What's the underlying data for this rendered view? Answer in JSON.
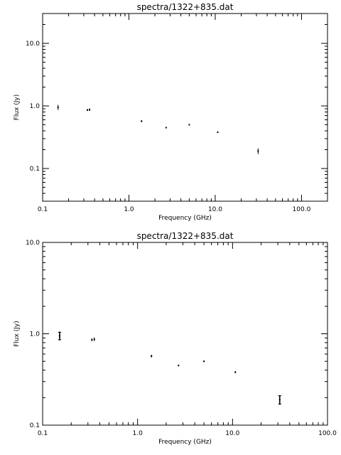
{
  "chart_data": [
    {
      "type": "scatter",
      "title": "spectra/1322+835.dat",
      "xlabel": "Frequency (GHz)",
      "ylabel": "Flux (Jy)",
      "xscale": "log",
      "yscale": "log",
      "xlim": [
        0.1,
        200
      ],
      "ylim": [
        0.03,
        30
      ],
      "xticks": [
        0.1,
        1.0,
        10.0,
        100.0
      ],
      "xtick_labels": [
        "0.1",
        "1.0",
        "10.0",
        "100.0"
      ],
      "yticks": [
        0.1,
        1.0,
        10.0
      ],
      "ytick_labels": [
        "0.1",
        "1.0",
        "10.0"
      ],
      "grid": false,
      "points": [
        {
          "x": 0.151,
          "y": 0.95,
          "err": [
            0.86,
            1.04
          ]
        },
        {
          "x": 0.33,
          "y": 0.86,
          "err": [
            0.83,
            0.89
          ]
        },
        {
          "x": 0.35,
          "y": 0.87,
          "err": [
            0.83,
            0.91
          ]
        },
        {
          "x": 1.4,
          "y": 0.57,
          "err": [
            0.55,
            0.59
          ]
        },
        {
          "x": 2.7,
          "y": 0.45,
          "err": [
            0.44,
            0.46
          ]
        },
        {
          "x": 5.0,
          "y": 0.5,
          "err": [
            0.49,
            0.51
          ]
        },
        {
          "x": 10.7,
          "y": 0.38,
          "err": [
            0.37,
            0.39
          ]
        },
        {
          "x": 31.4,
          "y": 0.19,
          "err": [
            0.17,
            0.21
          ]
        }
      ]
    },
    {
      "type": "scatter",
      "title": "spectra/1322+835.dat",
      "xlabel": "Frequency (GHz)",
      "ylabel": "Flux (Jy)",
      "xscale": "log",
      "yscale": "log",
      "xlim": [
        0.1,
        100
      ],
      "ylim": [
        0.1,
        10
      ],
      "xticks": [
        0.1,
        1.0,
        10.0,
        100.0
      ],
      "xtick_labels": [
        "0.1",
        "1.0",
        "10.0",
        "100.0"
      ],
      "yticks": [
        0.1,
        1.0,
        10.0
      ],
      "ytick_labels": [
        "0.1",
        "1.0",
        "10.0"
      ],
      "grid": false,
      "points": [
        {
          "x": 0.151,
          "y": 0.95,
          "err": [
            0.86,
            1.04
          ]
        },
        {
          "x": 0.33,
          "y": 0.86,
          "err": [
            0.83,
            0.89
          ]
        },
        {
          "x": 0.35,
          "y": 0.87,
          "err": [
            0.83,
            0.91
          ]
        },
        {
          "x": 1.4,
          "y": 0.57,
          "err": [
            0.55,
            0.59
          ]
        },
        {
          "x": 2.7,
          "y": 0.45,
          "err": [
            0.44,
            0.46
          ]
        },
        {
          "x": 5.0,
          "y": 0.5,
          "err": [
            0.49,
            0.51
          ]
        },
        {
          "x": 10.7,
          "y": 0.38,
          "err": [
            0.37,
            0.39
          ]
        },
        {
          "x": 31.4,
          "y": 0.19,
          "err": [
            0.17,
            0.21
          ]
        }
      ]
    }
  ]
}
